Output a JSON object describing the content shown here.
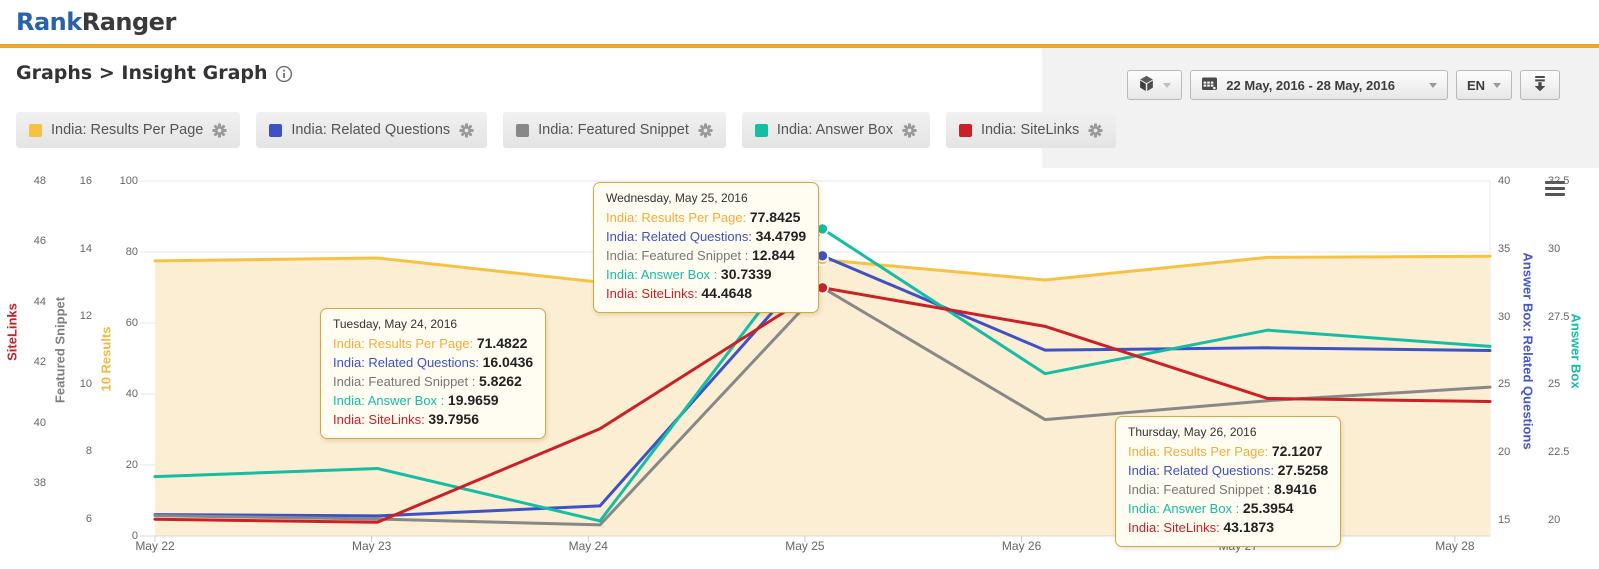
{
  "header": {
    "logo_rank": "Rank",
    "logo_ranger": "Ranger"
  },
  "breadcrumb": {
    "text": "Graphs > Insight Graph"
  },
  "toolbar": {
    "date_range": "22 May, 2016 - 28 May, 2016",
    "language": "EN"
  },
  "colors": {
    "accent": "#efa42d",
    "logo_blue": "#2a61ad",
    "results_per_page": "#f7c244",
    "related_questions": "#3d52c5",
    "featured_snippet": "#888888",
    "answer_box": "#15bda5",
    "sitelinks": "#cc2027"
  },
  "legend": [
    {
      "label": "India: Results Per Page",
      "color": "#f7c244"
    },
    {
      "label": "India: Related Questions",
      "color": "#3d52c5"
    },
    {
      "label": "India: Featured Snippet",
      "color": "#888888"
    },
    {
      "label": "India: Answer Box",
      "color": "#15bda5"
    },
    {
      "label": "India: SiteLinks",
      "color": "#cc2027"
    }
  ],
  "chart_data": {
    "type": "line",
    "x": [
      "May 22",
      "May 23",
      "May 24",
      "May 25",
      "May 26",
      "May 27",
      "May 28"
    ],
    "marker_day_index": 3,
    "area_fill": "#fbeed3",
    "series": [
      {
        "name": "India: Results Per Page",
        "color": "#f7c244",
        "axis": "10 Results",
        "area": true,
        "values": [
          77.5,
          78.3,
          71.4822,
          77.8425,
          72.1207,
          78.5,
          78.8
        ]
      },
      {
        "name": "India: Related Questions",
        "color": "#3d52c5",
        "axis": "Answer Box: Related Questions",
        "values": [
          15.4,
          15.3,
          16.0436,
          34.4799,
          27.5258,
          27.7,
          27.5
        ]
      },
      {
        "name": "India: Featured Snippet",
        "color": "#888888",
        "axis": "Featured Snippet",
        "values": [
          6.1,
          6.0,
          5.8262,
          12.844,
          8.9416,
          9.5,
          9.9
        ]
      },
      {
        "name": "India: Answer Box",
        "color": "#15bda5",
        "axis": "Answer Box",
        "values": [
          21.6,
          21.9,
          19.9659,
          30.7339,
          25.3954,
          27.0,
          26.4
        ]
      },
      {
        "name": "India: SiteLinks",
        "color": "#cc2027",
        "axis": "SiteLinks",
        "values": [
          36.8,
          36.7,
          39.7956,
          44.4648,
          43.1873,
          40.8,
          40.7
        ]
      }
    ],
    "axes": [
      {
        "title": "SiteLinks",
        "color": "#cc2027",
        "side": "left",
        "ticks": [
          "48",
          "46",
          "44",
          "42",
          "40",
          "38"
        ]
      },
      {
        "title": "Featured Snippet",
        "color": "#808080",
        "side": "left",
        "ticks": [
          "16",
          "14",
          "12",
          "10",
          "8",
          "6"
        ]
      },
      {
        "title": "10 Results",
        "color": "#f5b93f",
        "side": "left",
        "ticks": [
          "100",
          "80",
          "60",
          "40",
          "20",
          "0"
        ]
      },
      {
        "title": "Answer Box: Related Questions",
        "color": "#4455cc",
        "side": "right",
        "ticks": [
          "40",
          "35",
          "30",
          "25",
          "20",
          "15"
        ]
      },
      {
        "title": "Answer Box",
        "color": "#15bda5",
        "side": "right",
        "ticks": [
          "32.5",
          "30",
          "27.5",
          "25",
          "22.5",
          "20"
        ]
      }
    ]
  },
  "tooltips": [
    {
      "title": "Tuesday, May 24, 2016",
      "rows": [
        {
          "label": "India: Results Per Page:",
          "value": "71.4822",
          "color": "#f0ad3e"
        },
        {
          "label": "India: Related Questions:",
          "value": "16.0436",
          "color": "#3d52c5"
        },
        {
          "label": "India: Featured Snippet :",
          "value": "5.8262",
          "color": "#777777"
        },
        {
          "label": "India: Answer Box :",
          "value": "19.9659",
          "color": "#15bda5"
        },
        {
          "label": "India: SiteLinks:",
          "value": "39.7956",
          "color": "#cc2027"
        }
      ]
    },
    {
      "title": "Wednesday, May 25, 2016",
      "rows": [
        {
          "label": "India: Results Per Page:",
          "value": "77.8425",
          "color": "#f0ad3e"
        },
        {
          "label": "India: Related Questions:",
          "value": "34.4799",
          "color": "#3d52c5"
        },
        {
          "label": "India: Featured Snippet :",
          "value": "12.844",
          "color": "#777777"
        },
        {
          "label": "India: Answer Box :",
          "value": "30.7339",
          "color": "#15bda5"
        },
        {
          "label": "India: SiteLinks:",
          "value": "44.4648",
          "color": "#cc2027"
        }
      ]
    },
    {
      "title": "Thursday, May 26, 2016",
      "rows": [
        {
          "label": "India: Results Per Page:",
          "value": "72.1207",
          "color": "#f0ad3e"
        },
        {
          "label": "India: Related Questions:",
          "value": "27.5258",
          "color": "#3d52c5"
        },
        {
          "label": "India: Featured Snippet :",
          "value": "8.9416",
          "color": "#777777"
        },
        {
          "label": "India: Answer Box :",
          "value": "25.3954",
          "color": "#15bda5"
        },
        {
          "label": "India: SiteLinks:",
          "value": "43.1873",
          "color": "#cc2027"
        }
      ]
    }
  ]
}
